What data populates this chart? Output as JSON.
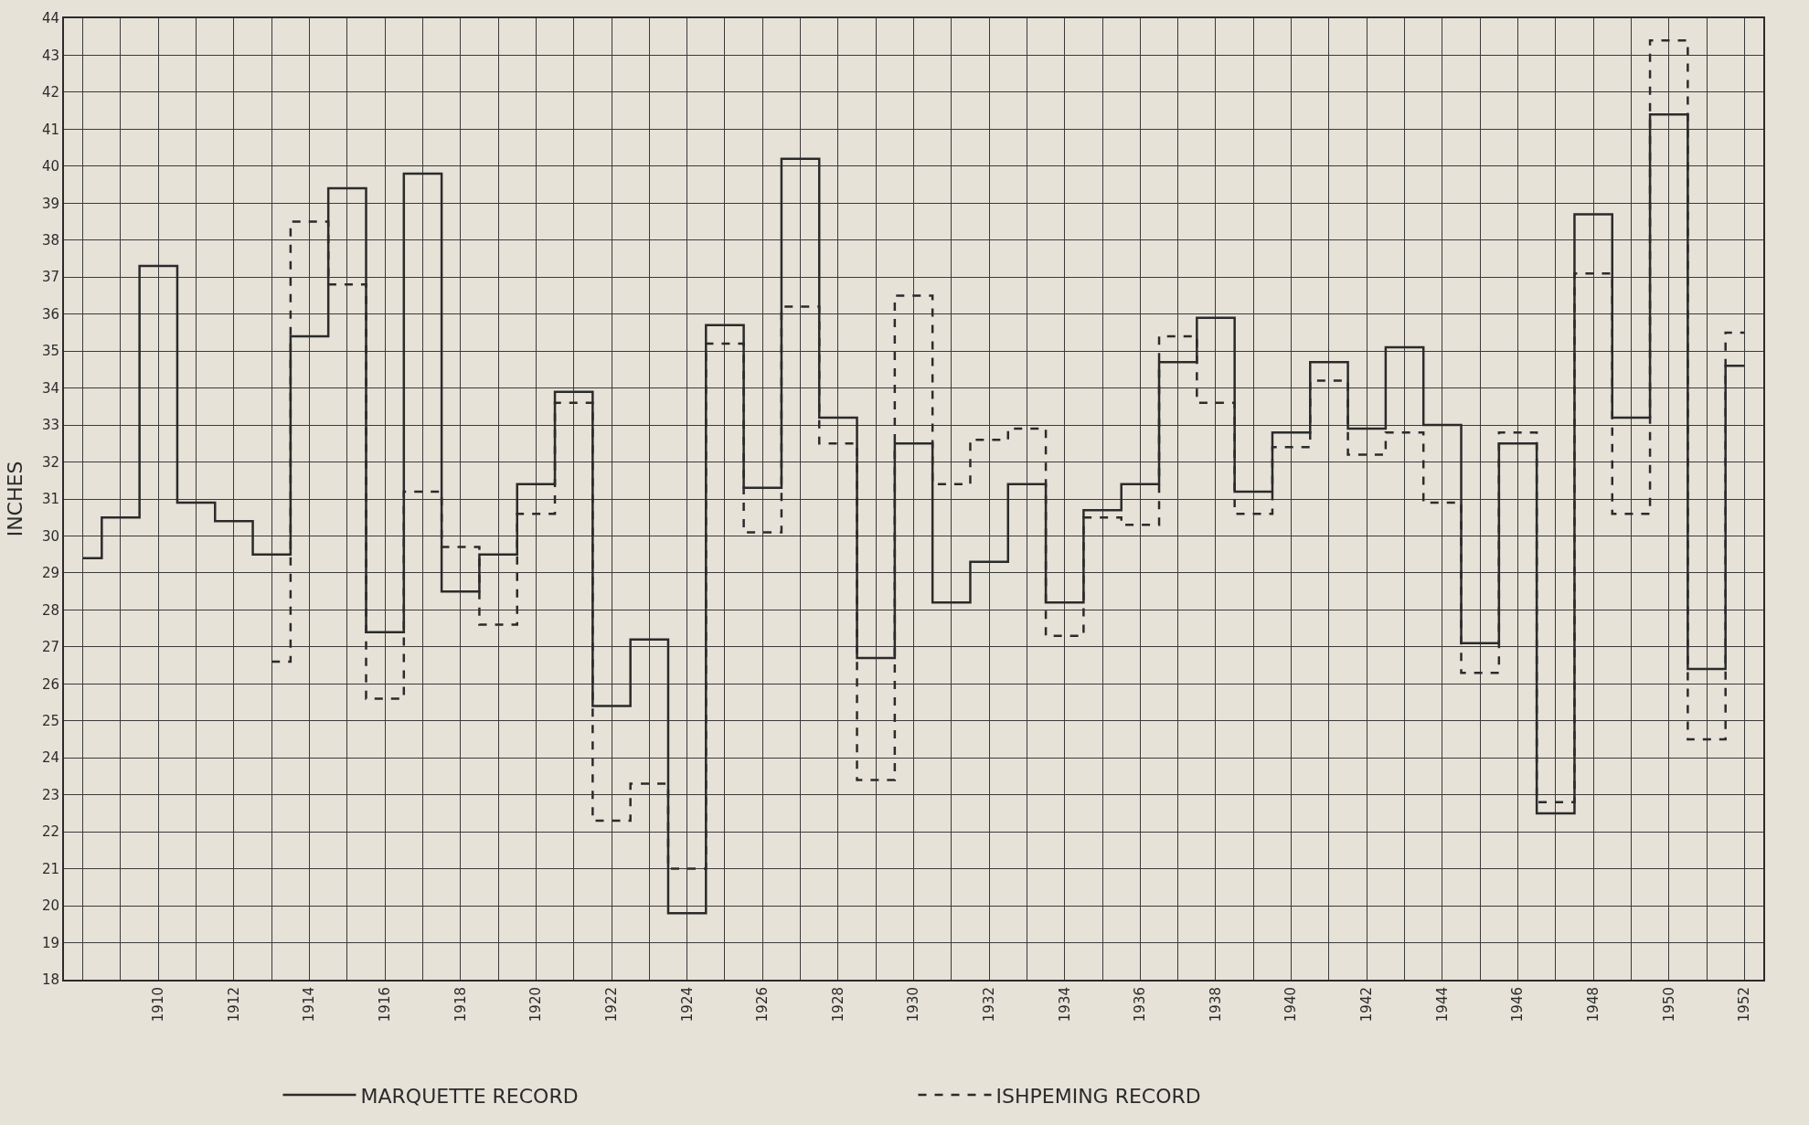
{
  "chart_data": {
    "type": "step",
    "ylabel": "INCHES",
    "x": [
      1908,
      1909,
      1910,
      1911,
      1912,
      1913,
      1914,
      1915,
      1916,
      1917,
      1918,
      1919,
      1920,
      1921,
      1922,
      1923,
      1924,
      1925,
      1926,
      1927,
      1928,
      1929,
      1930,
      1931,
      1932,
      1933,
      1934,
      1935,
      1936,
      1937,
      1938,
      1939,
      1940,
      1941,
      1942,
      1943,
      1944,
      1945,
      1946,
      1947,
      1948,
      1949,
      1950,
      1951,
      1952
    ],
    "series": [
      {
        "name": "MARQUETTE RECORD",
        "color": "#2b2b2b",
        "line_style": "solid",
        "values": [
          29.4,
          30.5,
          37.3,
          30.9,
          30.4,
          29.5,
          35.4,
          39.4,
          27.4,
          39.8,
          28.5,
          29.5,
          31.4,
          33.9,
          25.4,
          27.2,
          19.8,
          35.7,
          31.3,
          40.2,
          33.2,
          26.7,
          32.5,
          28.2,
          29.3,
          31.4,
          28.2,
          30.7,
          31.4,
          34.7,
          35.9,
          31.2,
          32.8,
          34.7,
          32.9,
          35.1,
          33.0,
          27.1,
          32.5,
          22.5,
          38.7,
          33.2,
          41.4,
          26.4,
          34.6
        ]
      },
      {
        "name": "ISHPEMING RECORD",
        "color": "#2b2b2b",
        "line_style": "dashed",
        "values": [
          null,
          null,
          null,
          null,
          null,
          26.6,
          38.5,
          36.8,
          25.6,
          31.2,
          29.7,
          27.6,
          30.6,
          33.6,
          22.3,
          23.3,
          21.0,
          35.2,
          30.1,
          36.2,
          32.5,
          23.4,
          36.5,
          31.4,
          32.6,
          32.9,
          27.3,
          30.5,
          30.3,
          35.4,
          33.6,
          30.6,
          32.4,
          34.2,
          32.2,
          32.8,
          30.9,
          26.3,
          32.8,
          22.8,
          37.1,
          30.6,
          43.4,
          24.5,
          35.5
        ]
      }
    ],
    "xlim": [
      1907.5,
      1952.5
    ],
    "xticks": [
      {
        "value": 1908,
        "label": null
      },
      {
        "value": 1909,
        "label": null
      },
      1910,
      {
        "value": 1911,
        "label": null
      },
      1912,
      {
        "value": 1913,
        "label": null
      },
      1914,
      {
        "value": 1915,
        "label": null
      },
      1916,
      {
        "value": 1917,
        "label": null
      },
      1918,
      {
        "value": 1919,
        "label": null
      },
      1920,
      {
        "value": 1921,
        "label": null
      },
      1922,
      {
        "value": 1923,
        "label": null
      },
      1924,
      {
        "value": 1925,
        "label": null
      },
      1926,
      {
        "value": 1927,
        "label": null
      },
      1928,
      {
        "value": 1929,
        "label": null
      },
      1930,
      {
        "value": 1931,
        "label": null
      },
      1932,
      {
        "value": 1933,
        "label": null
      },
      1934,
      {
        "value": 1935,
        "label": null
      },
      1936,
      {
        "value": 1937,
        "label": null
      },
      1938,
      {
        "value": 1939,
        "label": null
      },
      1940,
      {
        "value": 1941,
        "label": null
      },
      1942,
      {
        "value": 1943,
        "label": null
      },
      1944,
      {
        "value": 1945,
        "label": null
      },
      1946,
      {
        "value": 1947,
        "label": null
      },
      1948,
      {
        "value": 1949,
        "label": null
      },
      1950,
      {
        "value": 1951,
        "label": null
      },
      1952
    ],
    "ylim": [
      18,
      44
    ],
    "yticks": [
      18,
      19,
      20,
      21,
      22,
      23,
      24,
      25,
      26,
      27,
      28,
      29,
      30,
      31,
      32,
      33,
      34,
      35,
      36,
      37,
      38,
      39,
      40,
      41,
      42,
      43,
      44
    ],
    "grid": true,
    "legend": "bottom"
  }
}
